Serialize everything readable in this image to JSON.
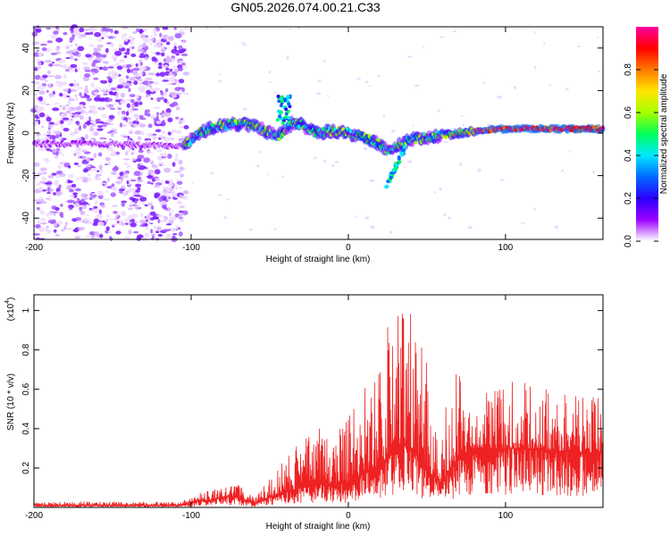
{
  "chart_data": [
    {
      "type": "heatmap",
      "title": "GN05.2026.074.00.21.C33",
      "xlabel": "Height of straight line (km)",
      "ylabel": "Frequency (Hz)",
      "xlim": [
        -200,
        162
      ],
      "ylim": [
        -50,
        50
      ],
      "xticks": [
        -200,
        -100,
        0,
        100
      ],
      "yticks": [
        -40,
        -20,
        0,
        20,
        40
      ],
      "noise_region_x": [
        -200,
        -103
      ],
      "ridge": {
        "x": [
          -200,
          -180,
          -160,
          -140,
          -120,
          -105,
          -95,
          -85,
          -75,
          -65,
          -58,
          -50,
          -45,
          -40,
          -35,
          -30,
          -20,
          -10,
          0,
          10,
          20,
          25,
          30,
          40,
          50,
          60,
          70,
          80,
          100,
          120,
          140,
          162
        ],
        "y": [
          -5,
          -5,
          -5,
          -5,
          -6,
          -6,
          0,
          3,
          4,
          4,
          3,
          0,
          -2,
          2,
          5,
          4,
          0,
          1,
          0,
          -2,
          -5,
          -8,
          -6,
          -3,
          -2,
          -1,
          0,
          1,
          2,
          2,
          2,
          2
        ]
      },
      "colorbar": {
        "label": "Normalized spectral amplitude",
        "ticks": [
          0.0,
          0.2,
          0.4,
          0.6,
          0.8
        ],
        "colors": [
          "#ffffff",
          "#9b00ff",
          "#2b00ff",
          "#0069ff",
          "#00e8ff",
          "#00ff5a",
          "#a6ff00",
          "#ffe600",
          "#ff7a00",
          "#ff0000",
          "#ff00a0"
        ]
      }
    },
    {
      "type": "line",
      "xlabel": "Height of straight line (km)",
      "ylabel": "SNR (10 * v/v)",
      "y_scale_label": "(x10",
      "y_scale_exponent": "4",
      "y_scale_suffix": ")",
      "xlim": [
        -200,
        162
      ],
      "ylim": [
        0,
        1.08
      ],
      "xticks": [
        -200,
        -100,
        0,
        100
      ],
      "yticks": [
        0.2,
        0.4,
        0.6,
        0.8,
        1.0
      ],
      "line_color": "#ee2222",
      "envelope": {
        "x": [
          -200,
          -150,
          -110,
          -100,
          -95,
          -80,
          -75,
          -70,
          -60,
          -55,
          -40,
          -30,
          -20,
          -10,
          0,
          10,
          20,
          25,
          30,
          35,
          40,
          45,
          50,
          55,
          60,
          65,
          70,
          80,
          100,
          120,
          140,
          162
        ],
        "base": [
          0.01,
          0.01,
          0.01,
          0.02,
          0.03,
          0.05,
          0.06,
          0.05,
          0.02,
          0.04,
          0.08,
          0.1,
          0.12,
          0.12,
          0.12,
          0.18,
          0.22,
          0.25,
          0.3,
          0.32,
          0.3,
          0.25,
          0.2,
          0.15,
          0.12,
          0.2,
          0.25,
          0.3,
          0.3,
          0.3,
          0.28,
          0.28
        ],
        "peak": [
          0.03,
          0.03,
          0.03,
          0.05,
          0.08,
          0.1,
          0.14,
          0.12,
          0.06,
          0.1,
          0.25,
          0.35,
          0.42,
          0.45,
          0.5,
          0.62,
          0.75,
          0.92,
          1.0,
          1.08,
          0.98,
          0.9,
          0.85,
          0.7,
          0.55,
          0.45,
          0.78,
          0.55,
          0.65,
          0.62,
          0.6,
          0.55
        ]
      }
    }
  ]
}
